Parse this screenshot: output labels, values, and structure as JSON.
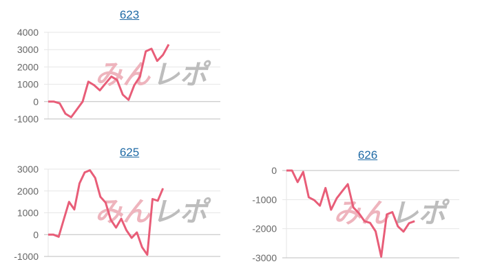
{
  "watermark": {
    "text_a": "みん",
    "text_b": "レポ"
  },
  "colors": {
    "line": "#e85d78",
    "grid": "#e6e6e6",
    "axis": "#bdbdbd",
    "title": "#1f6aa5",
    "wm_a": "#eeb4bd",
    "wm_b": "#bdbdbd"
  },
  "chart_data": [
    {
      "type": "line",
      "title": "623",
      "ylim": [
        -1000,
        4000
      ],
      "yticks": [
        "4000",
        "3000",
        "2000",
        "1000",
        "0",
        "-1000"
      ],
      "ytick_values": [
        4000,
        3000,
        2000,
        1000,
        0,
        -1000
      ],
      "xlim": [
        0,
        30
      ],
      "grid": true,
      "values": [
        0,
        0,
        -100,
        -700,
        -900,
        -450,
        0,
        1150,
        950,
        650,
        1050,
        1450,
        1250,
        400,
        100,
        950,
        1450,
        2900,
        3050,
        2350,
        2700,
        3300
      ]
    },
    {
      "type": "line",
      "title": "625",
      "ylim": [
        -1000,
        3000
      ],
      "yticks": [
        "3000",
        "2000",
        "1000",
        "0",
        "-1000"
      ],
      "ytick_values": [
        3000,
        2000,
        1000,
        0,
        -1000
      ],
      "xlim": [
        0,
        33
      ],
      "grid": true,
      "values": [
        0,
        0,
        -100,
        700,
        1500,
        1150,
        2350,
        2850,
        2950,
        2600,
        1730,
        1470,
        680,
        320,
        730,
        200,
        -150,
        100,
        -580,
        -920,
        1630,
        1550,
        2120
      ]
    },
    {
      "type": "line",
      "title": "626",
      "ylim": [
        -3000,
        0
      ],
      "yticks": [
        "0",
        "-1000",
        "-2000",
        "-3000"
      ],
      "ytick_values": [
        0,
        -1000,
        -2000,
        -3000
      ],
      "xlim": [
        0,
        31
      ],
      "grid": true,
      "values": [
        0,
        0,
        -400,
        -50,
        -920,
        -1020,
        -1210,
        -600,
        -1350,
        -960,
        -710,
        -470,
        -1270,
        -1470,
        -1740,
        -1800,
        -2090,
        -2960,
        -1510,
        -1430,
        -1920,
        -2100,
        -1810,
        -1740
      ]
    }
  ]
}
